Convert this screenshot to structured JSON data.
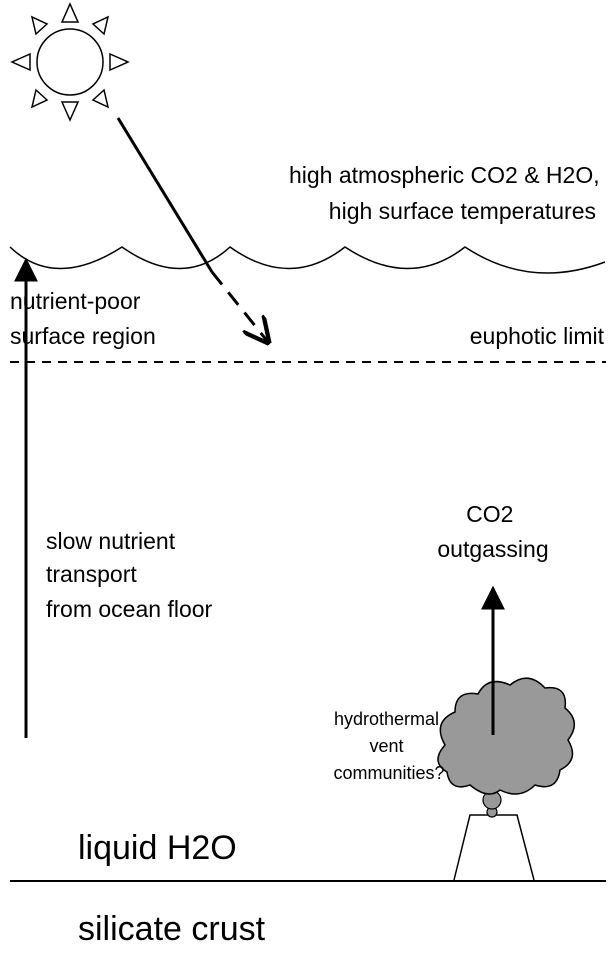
{
  "atmosphere": {
    "lines": [
      "high atmospheric CO2 & H2O,",
      "high surface temperatures"
    ]
  },
  "surface_region": {
    "lines": [
      "nutrient-poor",
      "surface region"
    ]
  },
  "euphotic_limit": "euphotic limit",
  "transport": {
    "lines": [
      "slow nutrient",
      "transport",
      "from ocean floor"
    ]
  },
  "outgassing": {
    "lines": [
      "CO2",
      "outgassing"
    ]
  },
  "vent": {
    "lines": [
      "hydrothermal",
      "vent",
      "communities?"
    ]
  },
  "ocean": "liquid H2O",
  "crust": "silicate crust"
}
